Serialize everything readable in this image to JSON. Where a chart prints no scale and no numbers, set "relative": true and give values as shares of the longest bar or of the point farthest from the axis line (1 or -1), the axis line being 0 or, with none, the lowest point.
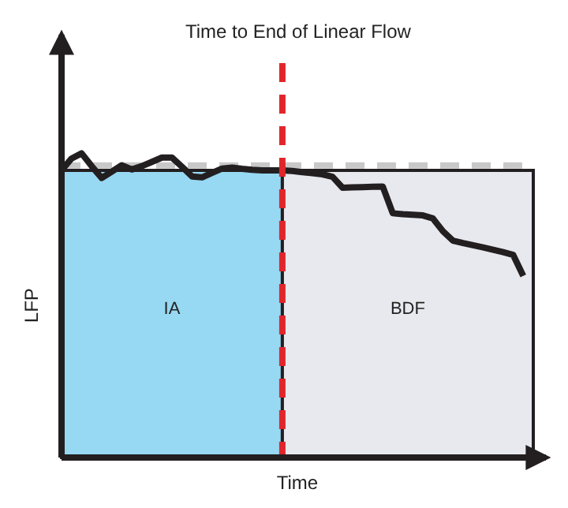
{
  "chart_data": {
    "type": "line",
    "relative": true,
    "xlabel": "Time",
    "ylabel": "LFP",
    "line_style": "solid",
    "categories": [
      null,
      null,
      null,
      null,
      null,
      null,
      null,
      null,
      null,
      null,
      null,
      null,
      null,
      null,
      null,
      null,
      null,
      null,
      null,
      null,
      null,
      null,
      null,
      null,
      null,
      null,
      null,
      null,
      null,
      null,
      null,
      null,
      null,
      null,
      null,
      null,
      null,
      null,
      null,
      null,
      null,
      null,
      null,
      null,
      null,
      null,
      null,
      null
    ],
    "series": [
      {
        "name": "IA",
        "type": "area",
        "color": "#97d8f2",
        "values": [
          0.944,
          0.944,
          0.944,
          0.944,
          0.944,
          0.944,
          0.944,
          0.944,
          0.944,
          0.944,
          0.944,
          0.944,
          0.944,
          0.944,
          0.944,
          0.944,
          0.944,
          0.944,
          0.944,
          0.944,
          0.944,
          0.944,
          0.944,
          null,
          null,
          null,
          null,
          null,
          null,
          null,
          null,
          null,
          null,
          null,
          null,
          null,
          null,
          null,
          null,
          null,
          null,
          null,
          null,
          null,
          null,
          null,
          null,
          null
        ]
      },
      {
        "name": "BDF",
        "type": "area",
        "color": "#e8e9ee",
        "values": [
          null,
          null,
          null,
          null,
          null,
          null,
          null,
          null,
          null,
          null,
          null,
          null,
          null,
          null,
          null,
          null,
          null,
          null,
          null,
          null,
          null,
          null,
          0.944,
          0.944,
          0.944,
          0.944,
          0.944,
          0.944,
          0.944,
          0.944,
          0.944,
          0.944,
          0.944,
          0.944,
          0.944,
          0.944,
          0.944,
          0.944,
          0.944,
          0.944,
          0.944,
          0.944,
          0.944,
          0.944,
          0.944,
          0.944,
          0.944,
          0.944
        ]
      },
      {
        "color": "#231f20",
        "values": [
          0.944,
          0.983,
          1,
          0.958,
          0.919,
          0.94,
          0.961,
          0.947,
          0.958,
          0.972,
          0.986,
          0.986,
          0.956,
          0.924,
          0.921,
          0.936,
          0.95,
          0.953,
          0.949,
          0.946,
          0.944,
          0.944,
          0.944,
          0.942,
          0.938,
          0.935,
          0.931,
          0.923,
          0.887,
          0.888,
          0.889,
          0.89,
          0.891,
          0.803,
          0.8,
          0.798,
          0.796,
          0.786,
          0.744,
          0.713,
          0.705,
          0.698,
          0.691,
          0.683,
          0.675,
          0.666,
          0.597,
          null
        ]
      }
    ],
    "ref_lines": [
      {
        "axis": "y",
        "value": 0.96,
        "color": "#c8c8c8",
        "line_style": "dashed"
      },
      {
        "axis": "x",
        "label": "Time to End of Linear Flow",
        "color": "#e0262b",
        "line_style": "dashed"
      }
    ]
  }
}
